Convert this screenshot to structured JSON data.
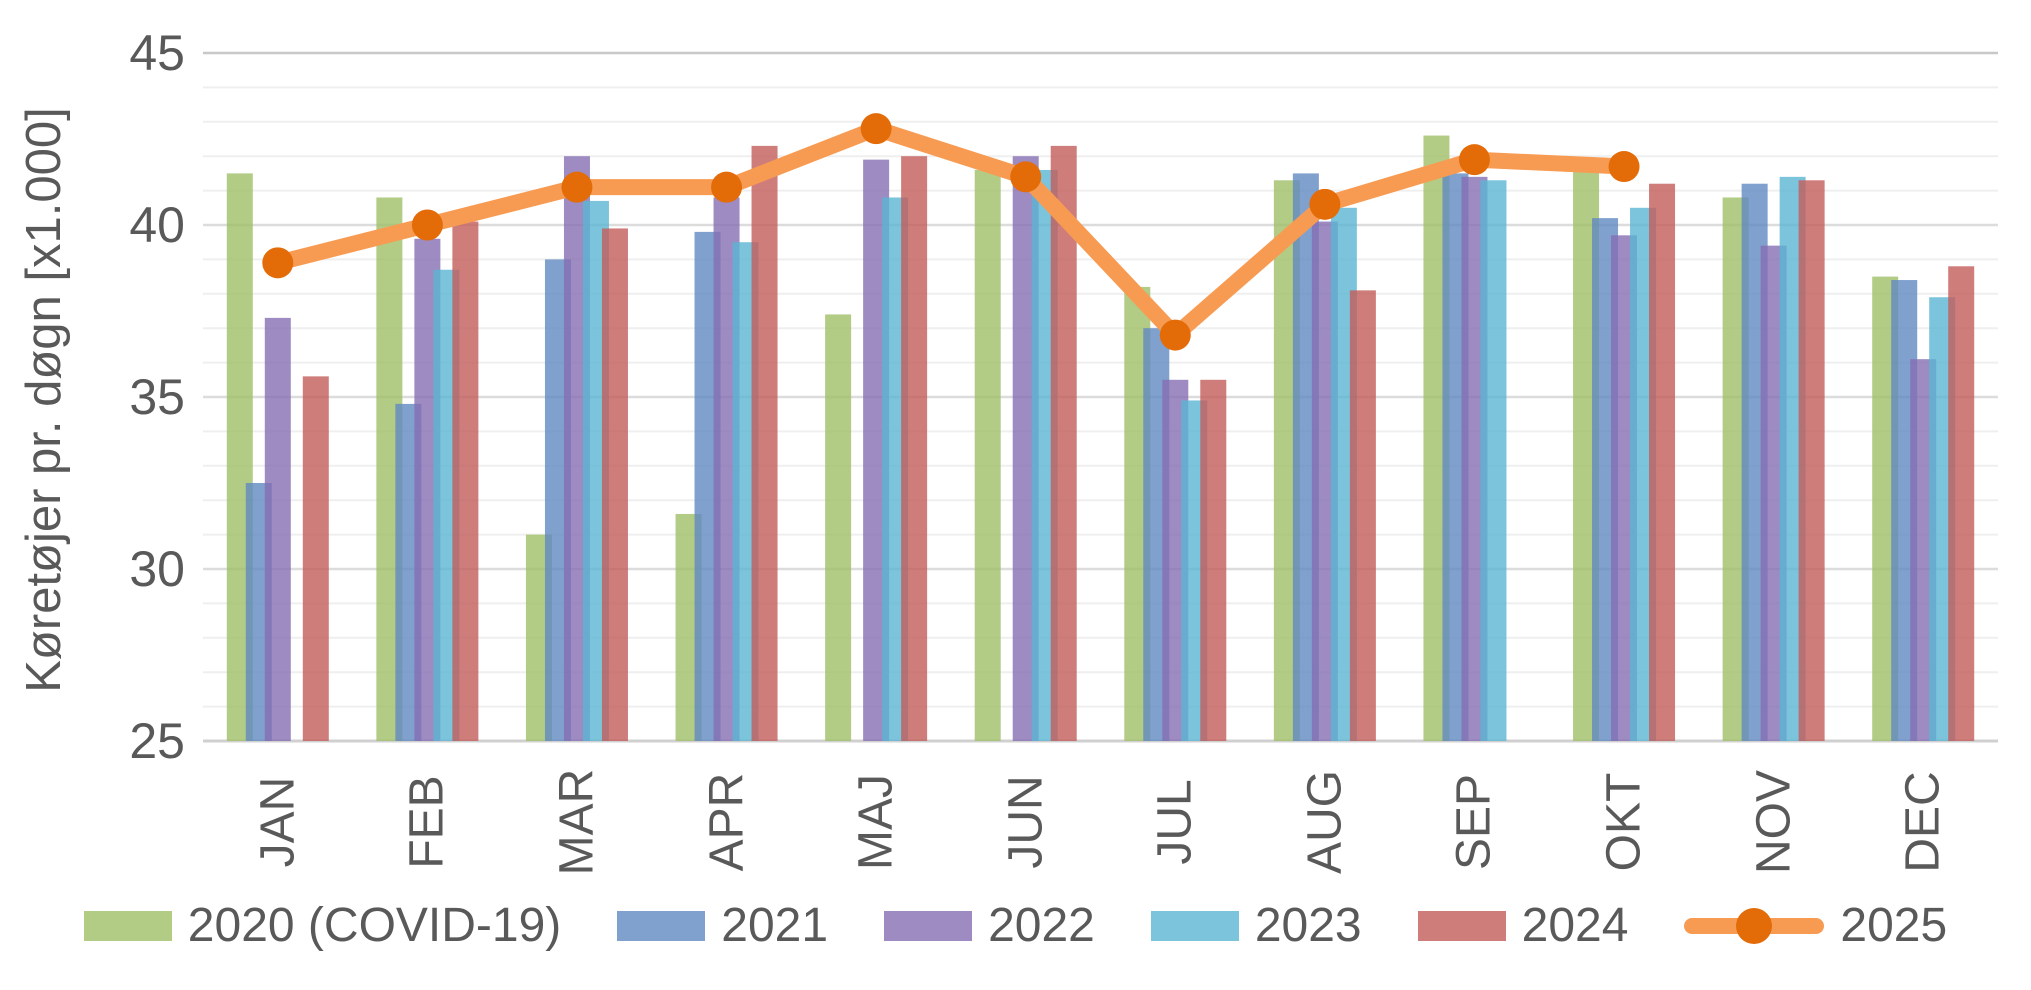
{
  "chart_data": {
    "type": "bar+line",
    "title": "",
    "ylabel": "Køretøjer pr. døgn [x1.000]",
    "xlabel": "",
    "ylim": [
      25,
      45
    ],
    "y_ticks": [
      25,
      30,
      35,
      40,
      45
    ],
    "grid": "minor horizontal every 1, major every 5",
    "legend_position": "bottom",
    "x_tick_rotation": 90,
    "categories": [
      "JAN",
      "FEB",
      "MAR",
      "APR",
      "MAJ",
      "JUN",
      "JUL",
      "AUG",
      "SEP",
      "OKT",
      "NOV",
      "DEC"
    ],
    "series": [
      {
        "name": "2020 (COVID-19)",
        "type": "bar",
        "color": "#9FBF68",
        "values": [
          41.5,
          40.8,
          31.0,
          31.6,
          37.4,
          41.6,
          38.2,
          41.3,
          42.6,
          41.6,
          40.8,
          38.5
        ]
      },
      {
        "name": "2021",
        "type": "bar",
        "color": "#6088C2",
        "values": [
          32.5,
          34.8,
          39.0,
          39.8,
          null,
          null,
          37.0,
          41.5,
          41.5,
          40.2,
          41.2,
          38.4
        ]
      },
      {
        "name": "2022",
        "type": "bar",
        "color": "#846EB3",
        "values": [
          37.3,
          39.6,
          42.0,
          40.8,
          41.9,
          42.0,
          35.5,
          40.1,
          41.4,
          39.7,
          39.4,
          36.1
        ]
      },
      {
        "name": "2023",
        "type": "bar",
        "color": "#5BB5D3",
        "values": [
          null,
          38.7,
          40.7,
          39.5,
          40.8,
          41.6,
          34.9,
          40.5,
          41.3,
          40.5,
          41.4,
          37.9
        ]
      },
      {
        "name": "2024",
        "type": "bar",
        "color": "#C35D5A",
        "values": [
          35.6,
          40.1,
          39.9,
          42.3,
          42.0,
          42.3,
          35.5,
          38.1,
          null,
          41.2,
          41.3,
          38.8
        ]
      },
      {
        "name": "2025",
        "type": "line",
        "color": "#F89B52",
        "marker_color": "#E36C09",
        "values": [
          38.9,
          40.0,
          41.1,
          41.1,
          42.8,
          41.4,
          36.8,
          40.6,
          41.9,
          41.7,
          null,
          null
        ]
      }
    ]
  },
  "palette": {
    "text": "#595959",
    "grid_minor": "#EFEFEF",
    "grid_major": "#DCDCDC",
    "grid_top": "#C8C8C8",
    "grid_baseline": "#D0D0D0"
  }
}
